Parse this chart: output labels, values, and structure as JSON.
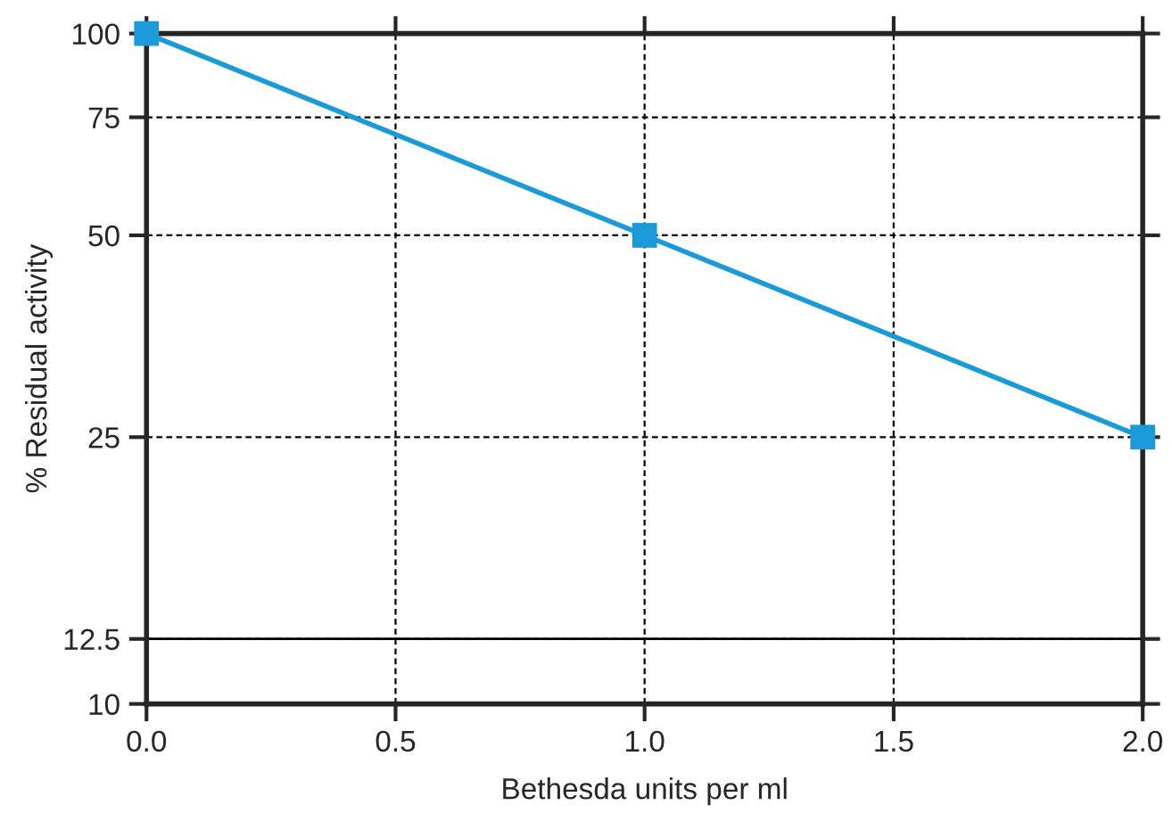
{
  "chart_data": {
    "type": "line",
    "xlabel": "Bethesda units per ml",
    "ylabel": "% Residual activity",
    "x": [
      0,
      1,
      2
    ],
    "series": [
      {
        "color": "#1a9ad8",
        "values": [
          100,
          50,
          25
        ]
      }
    ],
    "log": "y",
    "marker": "square",
    "line_style": "solid",
    "grid": true,
    "xlim": [
      0,
      2
    ],
    "xticks": [
      {
        "value": 0,
        "label": "0.0"
      },
      0.5,
      {
        "value": 1,
        "label": "1.0"
      },
      1.5,
      {
        "value": 2,
        "label": "2.0"
      }
    ],
    "ylim": [
      10,
      100
    ],
    "yticks": [
      10,
      12.5,
      25,
      50,
      75,
      100
    ],
    "ref_lines": [
      {
        "axis": "y",
        "value": 12.5,
        "color": "#000000",
        "line_style": "solid"
      }
    ]
  }
}
